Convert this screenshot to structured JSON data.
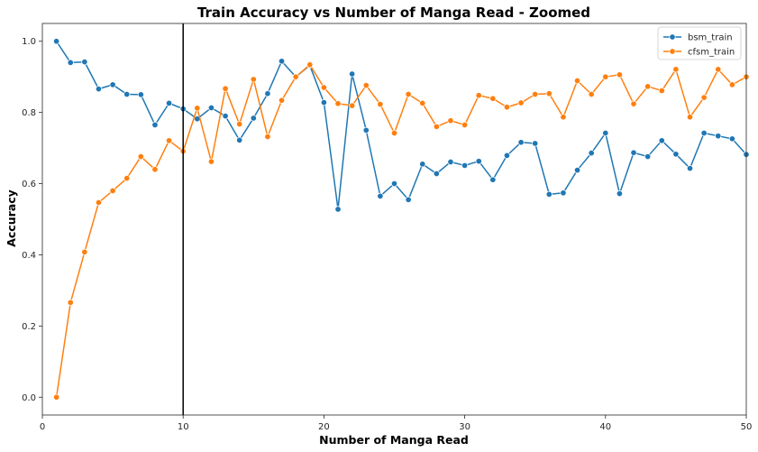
{
  "chart_data": {
    "type": "line",
    "title": "Train Accuracy vs Number of Manga Read - Zoomed",
    "xlabel": "Number of Manga Read",
    "ylabel": "Accuracy",
    "xlim": [
      0,
      50
    ],
    "ylim": [
      -0.05,
      1.05
    ],
    "xticks": [
      0,
      10,
      20,
      30,
      40,
      50
    ],
    "yticks": [
      0.0,
      0.2,
      0.4,
      0.6,
      0.8,
      1.0
    ],
    "xtick_labels": [
      "0",
      "10",
      "20",
      "30",
      "40",
      "50"
    ],
    "ytick_labels": [
      "0.0",
      "0.2",
      "0.4",
      "0.6",
      "0.8",
      "1.0"
    ],
    "grid": false,
    "legend_position": "top-right",
    "vertical_line_x": 10,
    "x": [
      1,
      2,
      3,
      4,
      5,
      6,
      7,
      8,
      9,
      10,
      11,
      12,
      13,
      14,
      15,
      16,
      17,
      18,
      19,
      20,
      21,
      22,
      23,
      24,
      25,
      26,
      27,
      28,
      29,
      30,
      31,
      32,
      33,
      34,
      35,
      36,
      37,
      38,
      39,
      40,
      41,
      42,
      43,
      44,
      45,
      46,
      47,
      48,
      49,
      50
    ],
    "series": [
      {
        "name": "bsm_train",
        "color": "#1f77b4",
        "values": [
          1.0,
          0.94,
          0.942,
          0.866,
          0.878,
          0.851,
          0.85,
          0.765,
          0.826,
          0.81,
          0.782,
          0.813,
          0.79,
          0.722,
          0.784,
          0.853,
          0.944,
          0.9,
          0.932,
          0.828,
          0.528,
          0.908,
          0.75,
          0.565,
          0.6,
          0.555,
          0.655,
          0.628,
          0.661,
          0.651,
          0.663,
          0.611,
          0.679,
          0.716,
          0.713,
          0.57,
          0.574,
          0.638,
          0.686,
          0.742,
          0.572,
          0.687,
          0.676,
          0.721,
          0.683,
          0.643,
          0.742,
          0.734,
          0.726,
          0.682
        ]
      },
      {
        "name": "cfsm_train",
        "color": "#ff7f0e",
        "values": [
          0.0,
          0.266,
          0.408,
          0.547,
          0.58,
          0.615,
          0.676,
          0.64,
          0.721,
          0.691,
          0.812,
          0.662,
          0.867,
          0.767,
          0.893,
          0.732,
          0.834,
          0.9,
          0.934,
          0.87,
          0.825,
          0.819,
          0.876,
          0.823,
          0.742,
          0.851,
          0.826,
          0.76,
          0.777,
          0.765,
          0.848,
          0.839,
          0.815,
          0.827,
          0.851,
          0.853,
          0.787,
          0.889,
          0.851,
          0.9,
          0.906,
          0.824,
          0.873,
          0.861,
          0.921,
          0.787,
          0.842,
          0.921,
          0.878,
          0.9
        ]
      }
    ]
  }
}
